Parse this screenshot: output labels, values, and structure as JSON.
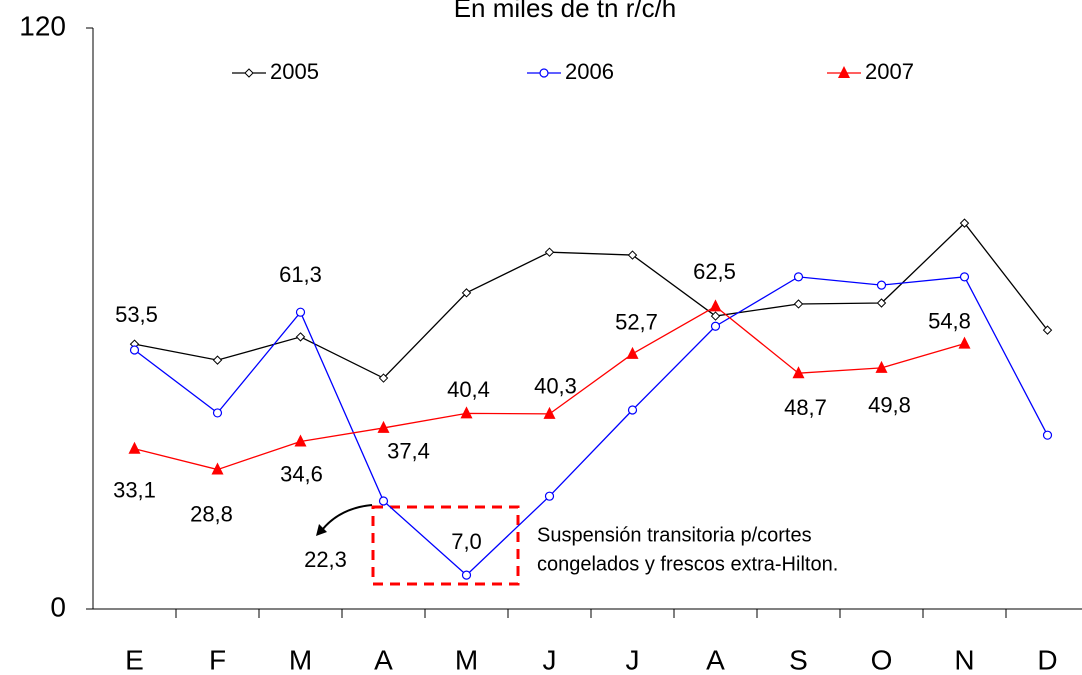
{
  "chart_data": {
    "type": "line",
    "title": "En miles de tn r/c/h",
    "categories": [
      "E",
      "F",
      "M",
      "A",
      "M",
      "J",
      "J",
      "A",
      "S",
      "O",
      "N",
      "D"
    ],
    "ylim": [
      0,
      120
    ],
    "yticks": [
      0,
      120
    ],
    "legend": "top",
    "series": [
      {
        "name": "2005",
        "color": "#000000",
        "marker": "diamond",
        "values": [
          54.7,
          51.4,
          56.2,
          47.7,
          65.3,
          73.7,
          73.1,
          60.5,
          63.0,
          63.2,
          79.7,
          57.6
        ]
      },
      {
        "name": "2006",
        "color": "#0000ff",
        "marker": "circle",
        "values": [
          53.5,
          40.5,
          61.3,
          22.3,
          7.0,
          23.3,
          41.1,
          58.4,
          68.6,
          66.9,
          68.6,
          35.9
        ],
        "value_labels": [
          "53,5",
          null,
          "61,3",
          "22,3",
          "7,0",
          null,
          null,
          null,
          null,
          null,
          null,
          null
        ]
      },
      {
        "name": "2007",
        "color": "#ff0000",
        "marker": "triangle",
        "values": [
          33.1,
          28.8,
          34.6,
          37.4,
          40.4,
          40.3,
          52.7,
          62.5,
          48.7,
          49.8,
          54.8,
          null
        ],
        "value_labels": [
          "33,1",
          "28,8",
          "34,6",
          "37,4",
          "40,4",
          "40,3",
          "52,7",
          "62,5",
          "48,7",
          "49,8",
          "54,8",
          null
        ]
      }
    ],
    "annotation": [
      "Suspensión transitoria p/cortes",
      "congelados y frescos extra-Hilton."
    ]
  }
}
